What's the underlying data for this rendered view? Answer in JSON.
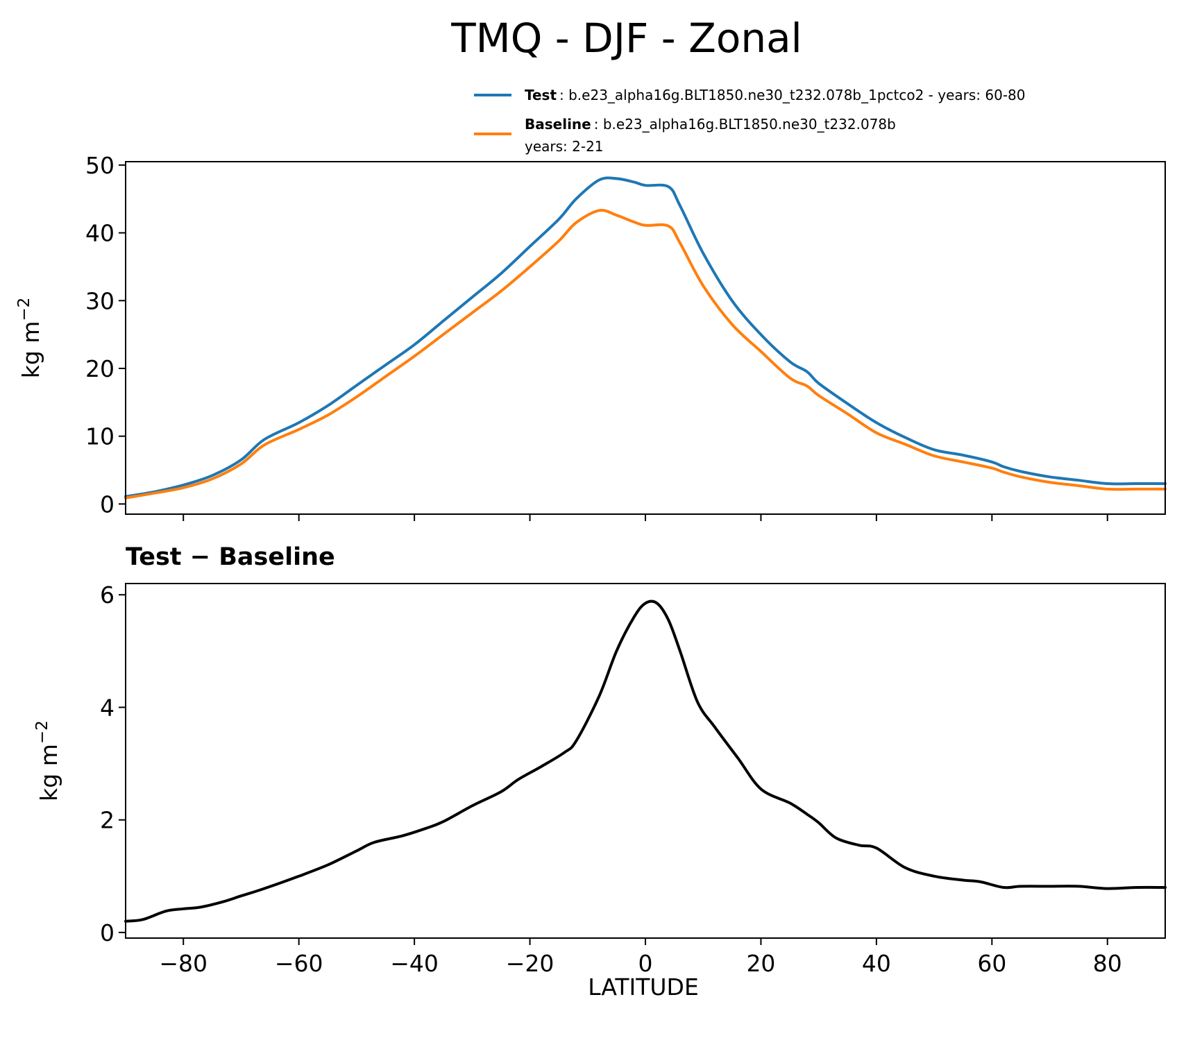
{
  "title": "TMQ - DJF - Zonal",
  "chart_data": [
    {
      "type": "line",
      "xlim": [
        -90,
        90
      ],
      "ylim": [
        -1.5,
        50.5
      ],
      "ylabel": "kg m",
      "ylabel_exponent": "−2",
      "xticks": [
        "−80",
        "−60",
        "−40",
        "−20",
        "0",
        "20",
        "40",
        "60",
        "80"
      ],
      "xtick_values": [
        -80,
        -60,
        -40,
        -20,
        0,
        20,
        40,
        60,
        80
      ],
      "yticks": [
        "0",
        "10",
        "20",
        "30",
        "40",
        "50"
      ],
      "ytick_values": [
        0,
        10,
        20,
        30,
        40,
        50
      ],
      "legend": [
        {
          "name": "Test",
          "text": ": b.e23_alpha16g.BLT1850.ne30_t232.078b_1pctco2 - years: 60-80",
          "color": "#1f77b4"
        },
        {
          "name": "Baseline",
          "text": ": b.e23_alpha16g.BLT1850.ne30_t232.078b",
          "text2": "years: 2-21",
          "color": "#ff7f0e"
        }
      ],
      "x": [
        -90,
        -85,
        -80,
        -75,
        -70,
        -66,
        -60,
        -55,
        -50,
        -45,
        -40,
        -35,
        -30,
        -25,
        -20,
        -15,
        -12,
        -8,
        -5,
        -2,
        0,
        4,
        6,
        10,
        15,
        20,
        25,
        28,
        30,
        35,
        40,
        45,
        50,
        55,
        60,
        62,
        65,
        70,
        75,
        80,
        85,
        90
      ],
      "series": [
        {
          "name": "Test",
          "color": "#1f77b4",
          "values": [
            1.1,
            1.8,
            2.8,
            4.2,
            6.5,
            9.5,
            12.0,
            14.5,
            17.5,
            20.5,
            23.5,
            27.0,
            30.5,
            34.0,
            38.0,
            42.0,
            45.0,
            47.8,
            48.0,
            47.5,
            47.0,
            46.8,
            44.0,
            37.0,
            30.0,
            25.0,
            21.0,
            19.5,
            17.8,
            14.8,
            12.0,
            9.8,
            8.0,
            7.2,
            6.2,
            5.5,
            4.8,
            4.0,
            3.5,
            3.0,
            3.0,
            3.0
          ]
        },
        {
          "name": "Baseline",
          "color": "#ff7f0e",
          "values": [
            0.9,
            1.6,
            2.4,
            3.7,
            5.9,
            8.7,
            11.0,
            13.1,
            15.8,
            18.8,
            21.8,
            25.0,
            28.2,
            31.4,
            35.0,
            38.8,
            41.5,
            43.3,
            42.6,
            41.6,
            41.1,
            41.0,
            38.5,
            32.2,
            26.5,
            22.5,
            18.6,
            17.4,
            16.0,
            13.3,
            10.5,
            8.8,
            7.1,
            6.2,
            5.3,
            4.7,
            4.0,
            3.2,
            2.7,
            2.2,
            2.2,
            2.2
          ]
        }
      ]
    },
    {
      "type": "line",
      "title": "Test − Baseline",
      "xlim": [
        -90,
        90
      ],
      "ylim": [
        -0.1,
        6.2
      ],
      "xlabel": "LATITUDE",
      "ylabel": "kg m",
      "ylabel_exponent": "−2",
      "xticks": [
        "−80",
        "−60",
        "−40",
        "−20",
        "0",
        "20",
        "40",
        "60",
        "80"
      ],
      "xtick_values": [
        -80,
        -60,
        -40,
        -20,
        0,
        20,
        40,
        60,
        80
      ],
      "yticks": [
        "0",
        "2",
        "4",
        "6"
      ],
      "ytick_values": [
        0,
        2,
        4,
        6
      ],
      "x": [
        -90,
        -87,
        -83,
        -80,
        -77,
        -73,
        -70,
        -66,
        -60,
        -55,
        -50,
        -47,
        -42,
        -38,
        -35,
        -30,
        -25,
        -22,
        -18,
        -14,
        -12,
        -8,
        -5,
        -2,
        0,
        2,
        4,
        6,
        9,
        12,
        16,
        20,
        25,
        28,
        30,
        33,
        37,
        40,
        45,
        50,
        55,
        58,
        62,
        65,
        70,
        75,
        80,
        85,
        90
      ],
      "series": [
        {
          "name": "Test − Baseline",
          "color": "#000000",
          "values": [
            0.2,
            0.23,
            0.38,
            0.42,
            0.45,
            0.55,
            0.65,
            0.78,
            1.0,
            1.2,
            1.45,
            1.6,
            1.72,
            1.85,
            1.97,
            2.25,
            2.5,
            2.72,
            2.95,
            3.2,
            3.4,
            4.2,
            5.0,
            5.6,
            5.85,
            5.85,
            5.55,
            5.0,
            4.1,
            3.65,
            3.1,
            2.55,
            2.3,
            2.1,
            1.95,
            1.68,
            1.55,
            1.5,
            1.15,
            1.0,
            0.93,
            0.9,
            0.8,
            0.82,
            0.82,
            0.82,
            0.78,
            0.8,
            0.8
          ]
        }
      ]
    }
  ]
}
